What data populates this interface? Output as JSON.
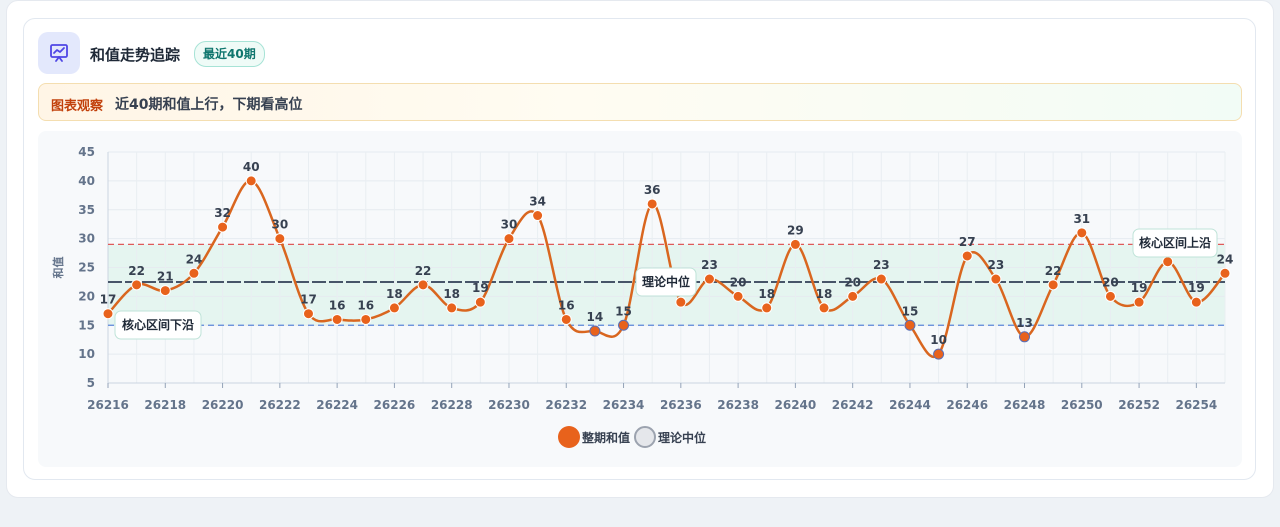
{
  "header": {
    "title": "和值走势追踪",
    "badge": "最近40期",
    "icon": "trend-chart-icon"
  },
  "insight": {
    "tag": "图表观察",
    "text": "近40期和值上行，下期看高位"
  },
  "legend": {
    "series_label": "整期和值",
    "median_label": "理论中位"
  },
  "colors": {
    "accent": "#e8621c",
    "line": "#d9661f",
    "upper": "#e05a5a",
    "lower": "#5b86d9",
    "median": "#475569",
    "band": "#dff3ec",
    "icon_bg": "#e3e8fc",
    "icon": "#4f46e5"
  },
  "chart_data": {
    "type": "line",
    "ylabel": "和值",
    "xlabel": "",
    "ylim": [
      5,
      45
    ],
    "yticks": [
      5,
      10,
      15,
      20,
      25,
      30,
      35,
      40,
      45
    ],
    "x": [
      26216,
      26217,
      26218,
      26219,
      26220,
      26221,
      26222,
      26223,
      26224,
      26225,
      26226,
      26227,
      26228,
      26229,
      26230,
      26231,
      26232,
      26233,
      26234,
      26235,
      26236,
      26237,
      26238,
      26239,
      26240,
      26241,
      26242,
      26243,
      26244,
      26245,
      26246,
      26247,
      26248,
      26249,
      26250,
      26251,
      26252,
      26253,
      26254,
      26255
    ],
    "xtick_labels": [
      "26216",
      "26218",
      "26220",
      "26222",
      "26224",
      "26226",
      "26228",
      "26230",
      "26232",
      "26234",
      "26236",
      "26238",
      "26240",
      "26242",
      "26244",
      "26246",
      "26248",
      "26250",
      "26252",
      "26254"
    ],
    "series": [
      {
        "name": "整期和值",
        "values": [
          17,
          22,
          21,
          24,
          32,
          40,
          30,
          17,
          16,
          16,
          18,
          22,
          18,
          19,
          30,
          34,
          16,
          14,
          15,
          36,
          19,
          23,
          20,
          18,
          29,
          18,
          20,
          23,
          15,
          10,
          27,
          23,
          13,
          22,
          31,
          20,
          19,
          26,
          19,
          24
        ]
      }
    ],
    "reference_lines": [
      {
        "label": "核心区间上沿",
        "value": 29
      },
      {
        "label": "理论中位",
        "value": 22.5
      },
      {
        "label": "核心区间下沿",
        "value": 15
      }
    ],
    "band": [
      15,
      29
    ],
    "grid": true,
    "legend_position": "bottom"
  }
}
